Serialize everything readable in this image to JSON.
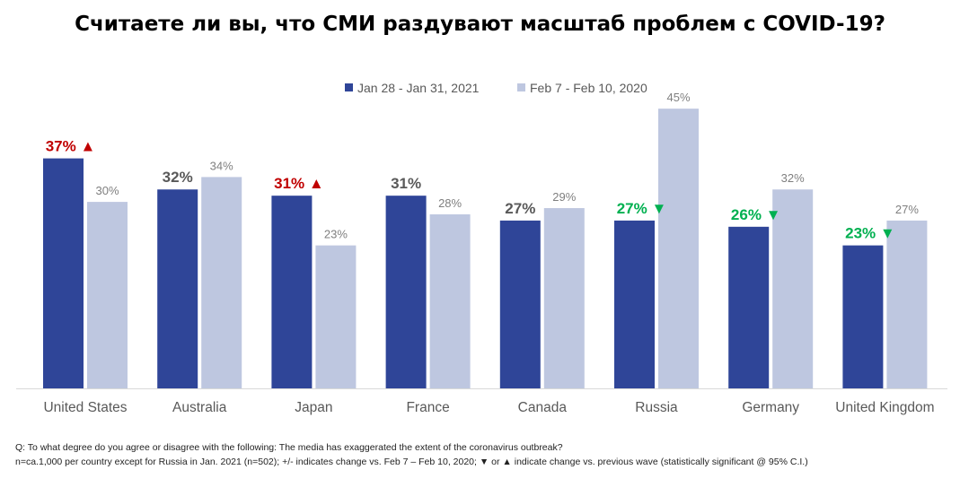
{
  "title": "Считаете ли вы, что СМИ раздувают масштаб проблем с COVID-19?",
  "colors": {
    "series1": "#2f4598",
    "series2": "#bec7e0",
    "up": "#c00000",
    "down": "#00b050",
    "neutral": "#595959",
    "light_label": "#7f7f7f"
  },
  "chart_data": {
    "type": "bar",
    "title": "Считаете ли вы, что СМИ раздувают масштаб проблем с COVID-19?",
    "categories": [
      "United States",
      "Australia",
      "Japan",
      "France",
      "Canada",
      "Russia",
      "Germany",
      "United Kingdom"
    ],
    "series": [
      {
        "name": "Jan 28 - Jan 31, 2021",
        "values": [
          37,
          32,
          31,
          31,
          27,
          27,
          26,
          23
        ],
        "labels": [
          "37%",
          "32%",
          "31%",
          "31%",
          "27%",
          "27%",
          "26%",
          "23%"
        ],
        "change": [
          "up",
          "none",
          "up",
          "none",
          "none",
          "down",
          "down",
          "down"
        ]
      },
      {
        "name": "Feb 7 - Feb 10, 2020",
        "values": [
          30,
          34,
          23,
          28,
          29,
          45,
          32,
          27
        ],
        "labels": [
          "30%",
          "34%",
          "23%",
          "28%",
          "29%",
          "45%",
          "32%",
          "27%"
        ]
      }
    ],
    "ylim": [
      0,
      45
    ],
    "grid": false,
    "legend": "top-center",
    "change_icons": {
      "up": "▲",
      "down": "▼"
    }
  },
  "footnote": {
    "question": "Q: To what degree do you agree or disagree with the following: The media has exaggerated the extent of the coronavirus outbreak?",
    "note": "n=ca.1,000 per country except for Russia in Jan. 2021 (n=502); +/- indicates change vs. Feb 7 – Feb 10, 2020; ▼ or ▲ indicate change vs. previous wave (statistically significant @ 95% C.I.)"
  }
}
